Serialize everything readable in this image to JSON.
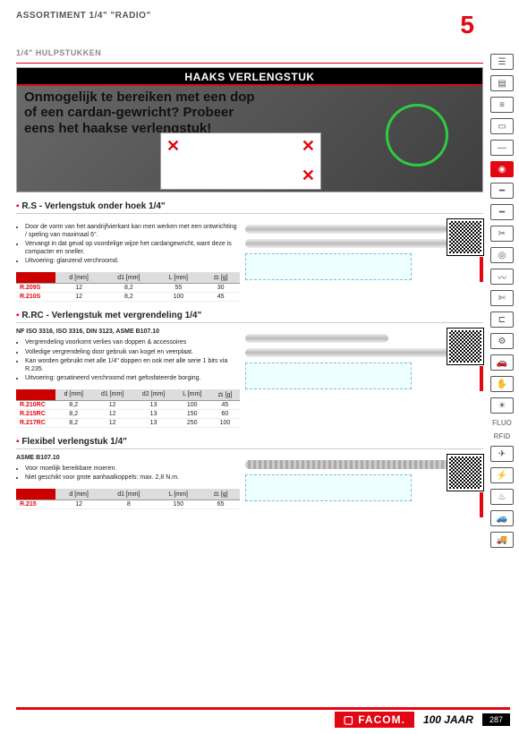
{
  "header": {
    "assortiment": "ASSORTIMENT 1/4\" \"RADIO\"",
    "chapter_number": "5",
    "subheading": "1/4\" HULPSTUKKEN"
  },
  "hero": {
    "banner": "HAAKS VERLENGSTUK",
    "headline": "Onmogelijk te bereiken met een dop of een cardan-gewricht? Probeer eens het haakse verlengstuk!"
  },
  "sections": [
    {
      "title": "R.S - Verlengstuk onder hoek 1/4\"",
      "bullets": [
        "Door de vorm van het aandrijfvierkant kan men werken met een ontwrichting / speling van maximaal 6°.",
        "Vervangt in dat geval op voordelige wijze het cardangewricht, want deze is compacter en sneller.",
        "Uitvoering: glanzend verchroomd."
      ],
      "table": {
        "columns": [
          "",
          "d [mm]",
          "d1 [mm]",
          "L [mm]",
          "⚖ [g]"
        ],
        "rows": [
          [
            "R.209S",
            "12",
            "8,2",
            "55",
            "30"
          ],
          [
            "R.210S",
            "12",
            "8,2",
            "100",
            "45"
          ]
        ]
      }
    },
    {
      "title": "R.RC - Verlengstuk met vergrendeling 1/4\"",
      "standards": "NF ISO 3316, ISO 3316, DIN 3123, ASME B107.10",
      "bullets": [
        "Vergrendeling voorkomt verlies van doppen & accessoires",
        "Volledige vergrendeling door gebruik van kogel en veerplaat.",
        "Kan worden gebruikt met alle 1/4\" doppen en ook met alle serie 1 bits via R.235.",
        "Uitvoering: gesatineerd verchroomd met gefosfateerde borging."
      ],
      "table": {
        "columns": [
          "",
          "d [mm]",
          "d1 [mm]",
          "d2 [mm]",
          "L [mm]",
          "⚖ [g]"
        ],
        "rows": [
          [
            "R.210RC",
            "8,2",
            "12",
            "13",
            "100",
            "45"
          ],
          [
            "R.215RC",
            "8,2",
            "12",
            "13",
            "150",
            "60"
          ],
          [
            "R.217RC",
            "8,2",
            "12",
            "13",
            "250",
            "100"
          ]
        ]
      }
    },
    {
      "title": "Flexibel verlengstuk 1/4\"",
      "standards": "ASME B107.10",
      "bullets": [
        "Voor moeilijk bereikbare moeren.",
        "Niet geschikt voor grote aanhaalkoppels: max. 2,8 N.m."
      ],
      "table": {
        "columns": [
          "",
          "d [mm]",
          "d1 [mm]",
          "L [mm]",
          "⚖ [g]"
        ],
        "rows": [
          [
            "R.215",
            "12",
            "8",
            "150",
            "65"
          ]
        ]
      }
    }
  ],
  "sidebar_icons": [
    {
      "name": "cabinet-icon",
      "active": false,
      "glyph": "☰"
    },
    {
      "name": "drawer-icon",
      "active": false,
      "glyph": "▤"
    },
    {
      "name": "stack-icon",
      "active": false,
      "glyph": "≡"
    },
    {
      "name": "case-icon",
      "active": false,
      "glyph": "▭"
    },
    {
      "name": "wrench-icon",
      "active": false,
      "glyph": "—"
    },
    {
      "name": "socket-icon",
      "active": true,
      "glyph": "◉"
    },
    {
      "name": "screwdriver-icon",
      "active": false,
      "glyph": "━"
    },
    {
      "name": "driver2-icon",
      "active": false,
      "glyph": "━"
    },
    {
      "name": "plier-icon",
      "active": false,
      "glyph": "✂"
    },
    {
      "name": "tape-icon",
      "active": false,
      "glyph": "◎"
    },
    {
      "name": "saw-icon",
      "active": false,
      "glyph": "〰"
    },
    {
      "name": "scissors-icon",
      "active": false,
      "glyph": "✄"
    },
    {
      "name": "clamp-icon",
      "active": false,
      "glyph": "⊏"
    },
    {
      "name": "drill-icon",
      "active": false,
      "glyph": "⚙"
    },
    {
      "name": "car-icon",
      "active": false,
      "glyph": "🚗"
    },
    {
      "name": "hand-icon",
      "active": false,
      "glyph": "✋"
    },
    {
      "name": "sun-icon",
      "active": false,
      "glyph": "☀"
    },
    {
      "name": "fluo-text",
      "active": false,
      "text": "FLUO"
    },
    {
      "name": "rfid-text",
      "active": false,
      "text": "RFiD"
    },
    {
      "name": "plane-icon",
      "active": false,
      "glyph": "✈"
    },
    {
      "name": "bolt-icon",
      "active": false,
      "glyph": "⚡"
    },
    {
      "name": "fire-icon",
      "active": false,
      "glyph": "♨"
    },
    {
      "name": "auto-icon",
      "active": false,
      "glyph": "🚙"
    },
    {
      "name": "truck-icon",
      "active": false,
      "glyph": "🚚"
    }
  ],
  "footer": {
    "brand": "▢ FACOM.",
    "anniversary": "100 JAAR",
    "page": "287"
  },
  "colors": {
    "brand_red": "#e30613",
    "highlight_green": "#2ecc40",
    "grey_header": "#dddddd"
  }
}
